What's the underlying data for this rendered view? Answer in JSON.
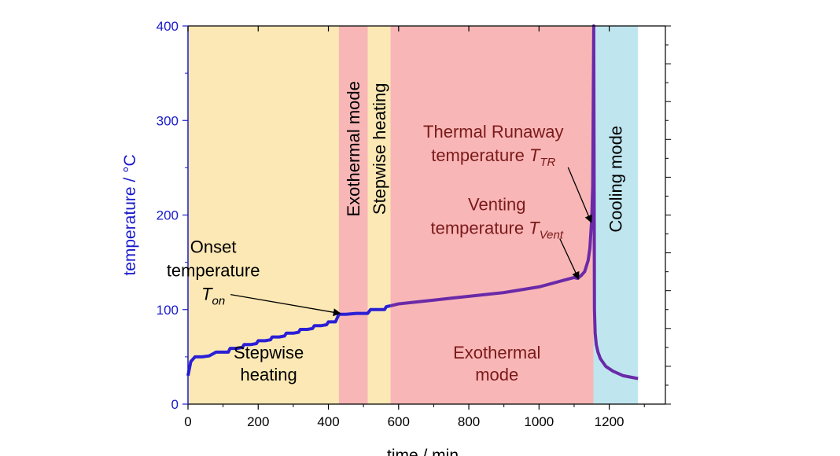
{
  "chart_data": {
    "type": "line",
    "xlabel": "time / min",
    "ylabel": "temperature / °C",
    "xlim": [
      0,
      1360
    ],
    "ylim": [
      0,
      400
    ],
    "xticks": [
      0,
      200,
      400,
      600,
      800,
      1000,
      1200
    ],
    "yticks": [
      0,
      100,
      200,
      300,
      400
    ],
    "colors": {
      "series": "#2a1fd6",
      "series_exo": "#6a2aa8",
      "stepwise": "#fbe8b4",
      "exothermal": "#f9b6b6",
      "cooling": "#bfe6ef",
      "yaxis": "#1a1acc"
    },
    "regions": [
      {
        "mode": "stepwise",
        "x0": 0,
        "x1": 430,
        "label_lines": [
          "Stepwise",
          "heating"
        ],
        "label_x": 230,
        "label_y": 30
      },
      {
        "mode": "exothermal",
        "x0": 430,
        "x1": 512,
        "label_lines": [
          "Exothermal mode"
        ],
        "label_x": 471,
        "label_y": 270,
        "vertical": true
      },
      {
        "mode": "stepwise",
        "x0": 512,
        "x1": 577,
        "label_lines": [
          "Stepwise heating"
        ],
        "label_x": 545,
        "label_y": 270,
        "vertical": true
      },
      {
        "mode": "exothermal",
        "x0": 577,
        "x1": 1155,
        "label_lines": [
          "Exothermal",
          "mode"
        ],
        "label_x": 880,
        "label_y": 30
      },
      {
        "mode": "cooling",
        "x0": 1155,
        "x1": 1282,
        "label_lines": [
          "Cooling mode"
        ],
        "label_x": 1218,
        "label_y": 238,
        "vertical": true
      }
    ],
    "series": [
      {
        "name": "temperature",
        "x": [
          0,
          8,
          20,
          40,
          60,
          80,
          85,
          100,
          115,
          120,
          140,
          155,
          160,
          180,
          195,
          200,
          220,
          235,
          240,
          260,
          275,
          280,
          300,
          315,
          320,
          340,
          355,
          360,
          380,
          395,
          400,
          420,
          430,
          450,
          480,
          512,
          520,
          560,
          565,
          577,
          600,
          650,
          700,
          750,
          800,
          850,
          900,
          950,
          1000,
          1050,
          1080,
          1100,
          1110,
          1120,
          1130,
          1140,
          1145,
          1150,
          1153,
          1156,
          1158,
          1160,
          1163,
          1168,
          1175,
          1190,
          1210,
          1240,
          1282
        ],
        "y": [
          30,
          45,
          50,
          50,
          51,
          55,
          55,
          55,
          55,
          59,
          59,
          60,
          63,
          63,
          64,
          67,
          67,
          68,
          71,
          71,
          72,
          75,
          75,
          76,
          79,
          79,
          80,
          83,
          83,
          84,
          87,
          87,
          95,
          95,
          96,
          96,
          100,
          100,
          103,
          104,
          106,
          108,
          110,
          112,
          114,
          116,
          118,
          121,
          124,
          129,
          132,
          134,
          133,
          136,
          140,
          152,
          165,
          195,
          230,
          400,
          100,
          75,
          63,
          55,
          48,
          40,
          35,
          30,
          27
        ]
      }
    ],
    "annotations": [
      {
        "id": "onset",
        "lines": [
          "Onset",
          "temperature"
        ],
        "symbol": "T",
        "subscript": "on",
        "text_x": 72,
        "text_y": 160,
        "arrow_to": [
          432,
          96
        ]
      },
      {
        "id": "venting",
        "lines": [
          "Venting",
          "temperature "
        ],
        "symbol": "T",
        "subscript": "Vent",
        "text_x": 880,
        "text_y": 205,
        "arrow_to": [
          1112,
          133
        ]
      },
      {
        "id": "runaway",
        "lines": [
          "Thermal Runaway",
          "temperature "
        ],
        "symbol": "T",
        "subscript": "TR",
        "text_x": 870,
        "text_y": 282,
        "arrow_to": [
          1148,
          193
        ]
      }
    ]
  }
}
